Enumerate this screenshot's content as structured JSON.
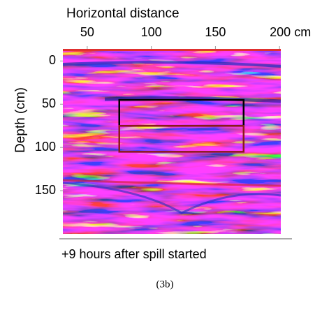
{
  "chart_data": {
    "type": "image",
    "xlabel": "Horizontal distance",
    "ylabel": "Depth (cm)",
    "xlim": [
      31,
      201
    ],
    "ylim": [
      -14,
      200
    ],
    "xticks": [
      50,
      100,
      150,
      {
        "value": 200,
        "label": "200 cm"
      }
    ],
    "yticks": [
      0,
      50,
      100,
      150
    ],
    "regions": [
      {
        "color": "#000000",
        "x": [
          75,
          172
        ],
        "y": [
          45,
          75
        ]
      },
      {
        "color": "#8b1a1a",
        "x": [
          75,
          172
        ],
        "y": [
          75,
          105
        ]
      }
    ],
    "caption": "+9 hours after spill started",
    "figure_label": "(3b)"
  }
}
